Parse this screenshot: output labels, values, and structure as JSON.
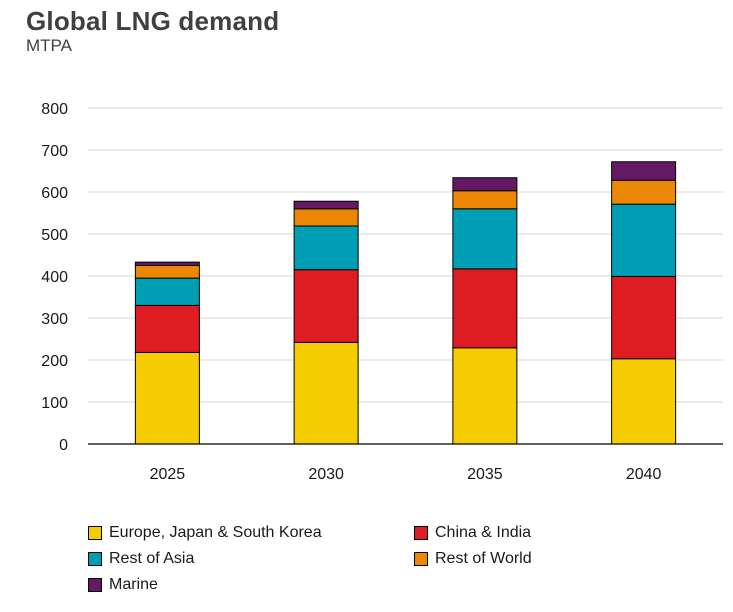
{
  "chart_data": {
    "type": "bar",
    "stacked": true,
    "title": "Global LNG demand",
    "subtitle": "MTPA",
    "categories": [
      "2025",
      "2030",
      "2035",
      "2040"
    ],
    "ylim": [
      0,
      800
    ],
    "yticks": [
      "0",
      "100",
      "200",
      "300",
      "400",
      "500",
      "600",
      "700",
      "800"
    ],
    "grid": true,
    "legend_position": "bottom",
    "series": [
      {
        "name": "Europe, Japan & South Korea",
        "color": "#f5cc00",
        "values": [
          218,
          242,
          229,
          203
        ]
      },
      {
        "name": "China & India",
        "color": "#dd1d21",
        "values": [
          112,
          173,
          188,
          196
        ]
      },
      {
        "name": "Rest of Asia",
        "color": "#009eb4",
        "values": [
          65,
          104,
          143,
          172
        ]
      },
      {
        "name": "Rest of World",
        "color": "#eb8705",
        "values": [
          30,
          41,
          43,
          57
        ]
      },
      {
        "name": "Marine",
        "color": "#641964",
        "values": [
          8,
          18,
          31,
          44
        ]
      }
    ]
  }
}
